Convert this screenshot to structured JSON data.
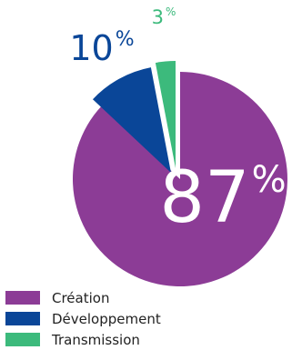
{
  "chart_data": {
    "type": "pie",
    "title": "",
    "unit": "%",
    "slices": [
      {
        "label": "Création",
        "value": 87,
        "color": "#8c3c96"
      },
      {
        "label": "Développement",
        "value": 10,
        "color": "#0a4698"
      },
      {
        "label": "Transmission",
        "value": 3,
        "color": "#3cba7c"
      }
    ],
    "legend": "bottom-left"
  }
}
